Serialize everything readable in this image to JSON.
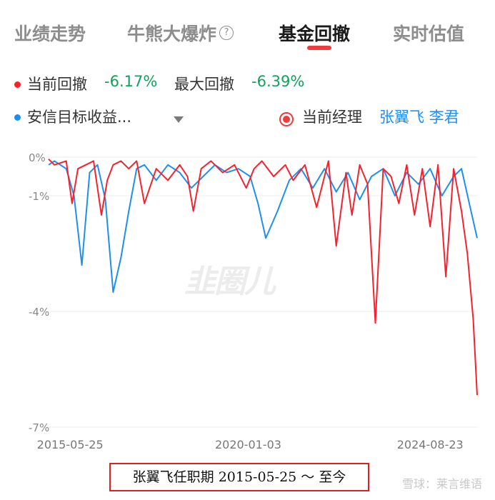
{
  "tabs": [
    {
      "label": "业绩走势",
      "active": false
    },
    {
      "label": "牛熊大爆炸",
      "active": false,
      "help_icon": "?"
    },
    {
      "label": "基金回撤",
      "active": true
    },
    {
      "label": "实时估值",
      "active": false
    }
  ],
  "summary": {
    "current_label": "当前回撤",
    "current_value": "-6.17%",
    "max_label": "最大回撤",
    "max_value": "-6.39%"
  },
  "legend": {
    "fund_name": "安信目标收益...",
    "manager_toggle_label": "当前经理",
    "managers": "张翼飞 李君"
  },
  "colors": {
    "fund_line": "#f5222d",
    "benchmark_line": "#1e8ff0",
    "value_green": "#12a05c"
  },
  "watermark": "韭圈儿",
  "footer": {
    "tenure": "张翼飞任职期 2015-05-25 ～ 至今",
    "brand": "雪球：莱言维语"
  },
  "chart_data": {
    "type": "line",
    "x_tick_labels": [
      "2015-05-25",
      "2020-01-03",
      "2024-08-23"
    ],
    "y_tick_labels": [
      "0%",
      "-1%",
      "-4%",
      "-7%"
    ],
    "y_unit": "%",
    "note_scale": "y axis non-linear (0,-1,-4,-7 evenly spaced)",
    "series": [
      {
        "color": "#f5222d",
        "x": [
          2014.85,
          2015.0,
          2015.3,
          2015.45,
          2015.6,
          2015.8,
          2016.0,
          2016.2,
          2016.35,
          2016.5,
          2016.7,
          2016.9,
          2017.1,
          2017.3,
          2017.6,
          2017.9,
          2018.2,
          2018.4,
          2018.55,
          2018.75,
          2019.0,
          2019.3,
          2019.6,
          2019.9,
          2020.1,
          2020.3,
          2020.6,
          2020.9,
          2021.1,
          2021.4,
          2021.7,
          2022.0,
          2022.2,
          2022.45,
          2022.6,
          2022.8,
          2023.0,
          2023.2,
          2023.4,
          2023.6,
          2023.8,
          2024.0,
          2024.2,
          2024.4,
          2024.6,
          2024.8,
          2025.0,
          2025.2,
          2025.4,
          2025.55,
          2025.7,
          2025.8
        ],
        "y": [
          -0.05,
          -0.2,
          -0.1,
          -1.2,
          -0.3,
          -0.2,
          -0.1,
          -1.5,
          -0.6,
          -0.2,
          -0.1,
          -0.3,
          -0.1,
          -1.2,
          -0.3,
          -0.6,
          -0.2,
          -0.5,
          -1.4,
          -0.3,
          -0.1,
          -0.4,
          -0.2,
          -0.8,
          -0.3,
          -0.1,
          -0.5,
          -0.2,
          -0.6,
          -0.2,
          -1.3,
          -0.1,
          -2.3,
          -0.4,
          -1.5,
          -0.2,
          -0.7,
          -4.3,
          -0.3,
          -0.5,
          -1.2,
          -0.2,
          -1.5,
          -0.3,
          -1.8,
          -0.2,
          -3.1,
          -0.3,
          -1.4,
          -2.5,
          -4.2,
          -6.17
        ]
      },
      {
        "color": "#1e8ff0",
        "x": [
          2014.85,
          2015.0,
          2015.3,
          2015.5,
          2015.7,
          2015.9,
          2016.1,
          2016.3,
          2016.5,
          2016.7,
          2016.9,
          2017.1,
          2017.3,
          2017.6,
          2017.9,
          2018.2,
          2018.5,
          2018.8,
          2019.1,
          2019.4,
          2019.7,
          2020.0,
          2020.2,
          2020.4,
          2020.7,
          2021.0,
          2021.3,
          2021.6,
          2021.9,
          2022.2,
          2022.5,
          2022.8,
          2023.1,
          2023.4,
          2023.7,
          2024.0,
          2024.3,
          2024.6,
          2024.9,
          2025.2,
          2025.4,
          2025.6,
          2025.8
        ],
        "y": [
          -0.2,
          -0.1,
          -0.3,
          -1.0,
          -2.8,
          -0.4,
          -0.2,
          -1.1,
          -3.5,
          -2.6,
          -1.4,
          -0.3,
          -0.2,
          -0.6,
          -0.2,
          -0.4,
          -0.8,
          -0.5,
          -0.2,
          -0.4,
          -0.3,
          -0.5,
          -1.2,
          -2.1,
          -1.4,
          -0.6,
          -0.3,
          -0.8,
          -0.3,
          -0.9,
          -0.4,
          -1.1,
          -0.5,
          -0.3,
          -1.0,
          -0.4,
          -0.7,
          -0.3,
          -1.0,
          -0.5,
          -0.3,
          -1.2,
          -2.1
        ]
      }
    ]
  }
}
